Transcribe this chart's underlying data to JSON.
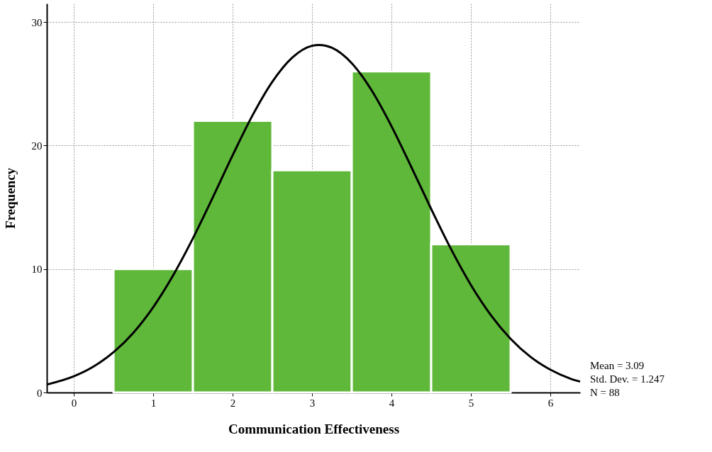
{
  "chart_data": {
    "type": "histogram",
    "xlabel": "Communication Effectiveness",
    "ylabel": "Frequency",
    "bins": [
      0.5,
      1.5,
      2.5,
      3.5,
      4.5,
      5.5
    ],
    "values": [
      10,
      22,
      18,
      26,
      12
    ],
    "color": "#5fb83a",
    "series": [
      {
        "type": "line",
        "color": "#000000",
        "x": [
          -0.34,
          0,
          0.25,
          0.5,
          0.75,
          1,
          1.25,
          1.5,
          1.75,
          2,
          2.25,
          2.5,
          2.75,
          3,
          3.09,
          3.25,
          3.5,
          3.75,
          4,
          4.25,
          4.5,
          4.75,
          5,
          5.25,
          5.5,
          5.75,
          6,
          6.25,
          6.375
        ],
        "values": [
          0.64,
          1.31,
          2.11,
          3.26,
          4.84,
          6.91,
          9.48,
          12.49,
          15.8,
          19.21,
          22.44,
          25.17,
          27.12,
          28.08,
          28.15,
          27.92,
          26.67,
          24.47,
          21.57,
          18.26,
          14.86,
          11.61,
          8.71,
          6.28,
          4.35,
          2.89,
          1.85,
          1.13,
          0.88
        ]
      }
    ],
    "xlim": [
      -0.34,
      6.375
    ],
    "xticks": [
      0,
      1,
      2,
      3,
      4,
      5,
      6
    ],
    "ylim": [
      0,
      31.5
    ],
    "yticks": [
      0,
      10,
      20,
      30
    ],
    "grid": true,
    "line_style": "solid",
    "marker": "none",
    "annotations": [
      "Mean = 3.09",
      "Std. Dev. = 1.247",
      "N = 88"
    ]
  }
}
